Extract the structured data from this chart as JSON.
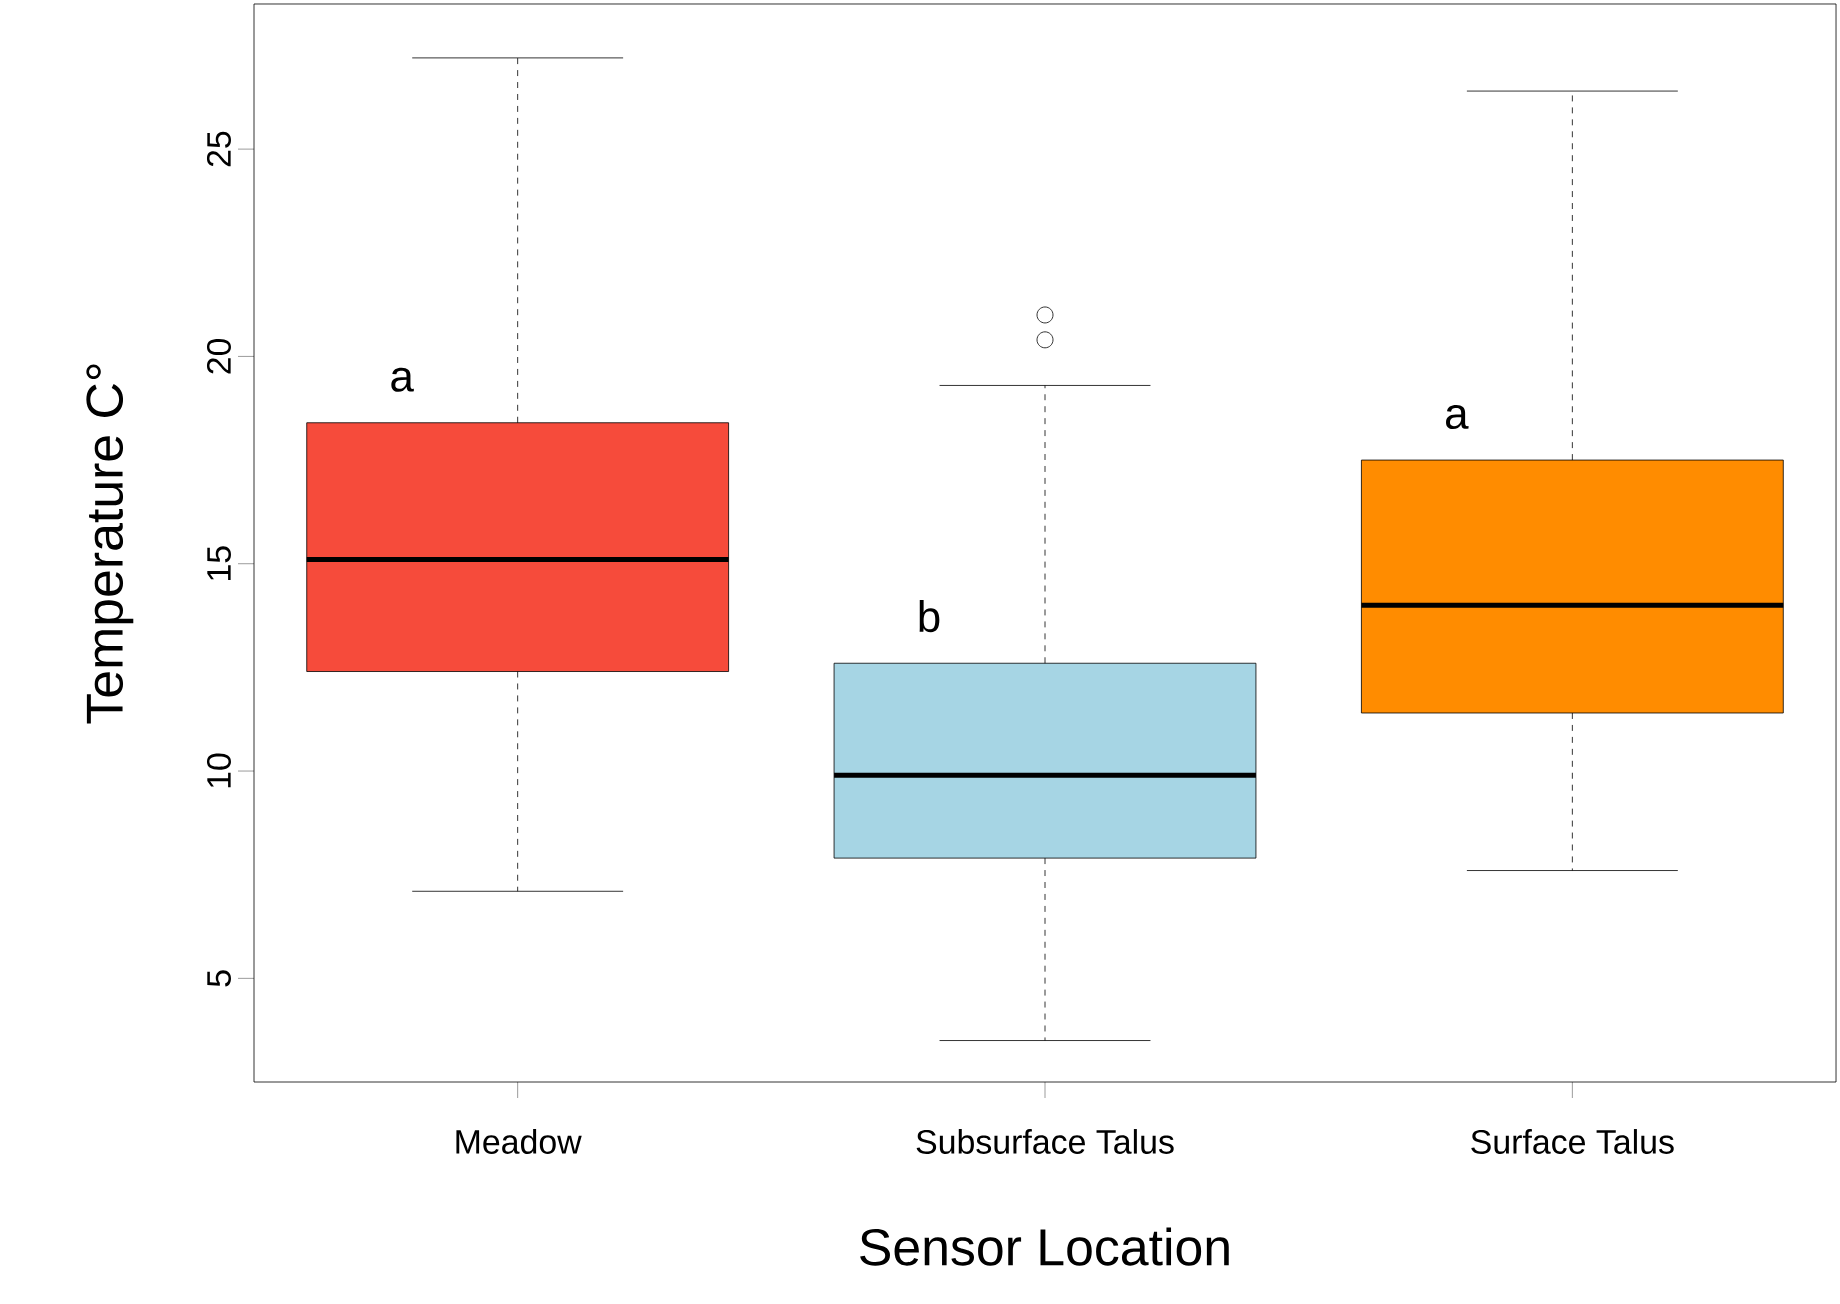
{
  "chart_data": {
    "type": "box",
    "xlabel": "Sensor Location",
    "ylabel": "Temperature C°",
    "categories": [
      "Meadow",
      "Subsurface Talus",
      "Surface Talus"
    ],
    "colors": [
      "#f64b3b",
      "#a6d5e4",
      "#ff8c00"
    ],
    "boxes": [
      {
        "low": 7.1,
        "q1": 12.4,
        "median": 15.1,
        "q3": 18.4,
        "high": 27.2
      },
      {
        "low": 3.5,
        "q1": 7.9,
        "median": 9.9,
        "q3": 12.6,
        "high": 19.3,
        "outliers": [
          20.4,
          21.0
        ]
      },
      {
        "low": 7.6,
        "q1": 11.4,
        "median": 14.0,
        "q3": 17.5,
        "high": 26.4
      }
    ],
    "ylim": [
      2.5,
      28.5
    ],
    "yticks": [
      5,
      10,
      15,
      20,
      25
    ],
    "annotations": [
      "a",
      "b",
      "a"
    ]
  }
}
